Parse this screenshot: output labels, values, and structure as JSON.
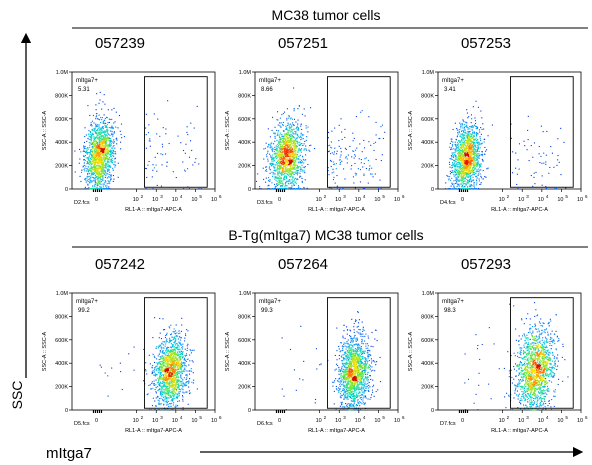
{
  "figure": {
    "ylabel": "SSC",
    "xlabel": "mItga7"
  },
  "groups": [
    {
      "title": "MC38 tumor cells"
    },
    {
      "title": "B-Tg(mItga7) MC38 tumor cells"
    }
  ],
  "chart_data": [
    {
      "type": "scatter",
      "sample_id": "057239",
      "file": "D2.fcs",
      "gate_label": "mItga7+",
      "gate_percent": "5.31",
      "xlabel": "RL1-A :: mItga7-APC-A",
      "ylabel": "SSC-A :: SSC-A",
      "x_scale": "log",
      "xlim": [
        0.05,
        1000000
      ],
      "ylim": [
        0,
        1000000
      ],
      "x_ticks": [
        "0",
        "10",
        "10",
        "10",
        "10",
        "10"
      ],
      "x_tick_exp": [
        "",
        "2",
        "3",
        "4",
        "5",
        "6"
      ],
      "y_ticks": [
        "0",
        "200K",
        "400K",
        "600K",
        "800K",
        "1.0M"
      ],
      "gate_x": [
        250,
        1000000
      ],
      "population": {
        "x_center_log": 0.1,
        "x_spread_log": 0.38,
        "y_center": 290000,
        "y_spread": 150000,
        "tail_fraction": 0.06,
        "tail_x_range": [
          250,
          200000
        ]
      }
    },
    {
      "type": "scatter",
      "sample_id": "057251",
      "file": "D3.fcs",
      "gate_label": "mItga7+",
      "gate_percent": "8.66",
      "xlabel": "RL1-A :: mItga7-APC-A",
      "ylabel": "SSC-A :: SSC-A",
      "x_scale": "log",
      "xlim": [
        0.05,
        1000000
      ],
      "ylim": [
        0,
        1000000
      ],
      "x_ticks": [
        "0",
        "10",
        "10",
        "10",
        "10",
        "10"
      ],
      "x_tick_exp": [
        "",
        "2",
        "3",
        "4",
        "5",
        "6"
      ],
      "y_ticks": [
        "0",
        "200K",
        "400K",
        "600K",
        "800K",
        "1.0M"
      ],
      "gate_x": [
        250,
        1000000
      ],
      "population": {
        "x_center_log": 0.3,
        "x_spread_log": 0.45,
        "y_center": 280000,
        "y_spread": 140000,
        "tail_fraction": 0.09,
        "tail_x_range": [
          250,
          200000
        ]
      }
    },
    {
      "type": "scatter",
      "sample_id": "057253",
      "file": "D4.fcs",
      "gate_label": "mItga7+",
      "gate_percent": "3.41",
      "xlabel": "RL1-A :: mItga7-APC-A",
      "ylabel": "SSC-A :: SSC-A",
      "x_scale": "log",
      "xlim": [
        0.05,
        1000000
      ],
      "ylim": [
        0,
        1000000
      ],
      "x_ticks": [
        "0",
        "10",
        "10",
        "10",
        "10",
        "10"
      ],
      "x_tick_exp": [
        "",
        "2",
        "3",
        "4",
        "5",
        "6"
      ],
      "y_ticks": [
        "0",
        "200K",
        "400K",
        "600K",
        "800K",
        "1.0M"
      ],
      "gate_x": [
        250,
        1000000
      ],
      "population": {
        "x_center_log": 0.15,
        "x_spread_log": 0.38,
        "y_center": 270000,
        "y_spread": 140000,
        "tail_fraction": 0.04,
        "tail_x_range": [
          250,
          200000
        ]
      }
    },
    {
      "type": "scatter",
      "sample_id": "057242",
      "file": "D5.fcs",
      "gate_label": "mItga7+",
      "gate_percent": "99.2",
      "xlabel": "RL1-A :: mItga7-APC-A",
      "ylabel": "SSC-A :: SSC-A",
      "x_scale": "log",
      "xlim": [
        0.05,
        1000000
      ],
      "ylim": [
        0,
        1000000
      ],
      "x_ticks": [
        "0",
        "10",
        "10",
        "10",
        "10",
        "10"
      ],
      "x_tick_exp": [
        "",
        "2",
        "3",
        "4",
        "5",
        "6"
      ],
      "y_ticks": [
        "0",
        "200K",
        "400K",
        "600K",
        "800K",
        "1.0M"
      ],
      "gate_x": [
        250,
        1000000
      ],
      "population": {
        "x_center_log": 3.7,
        "x_spread_log": 0.42,
        "y_center": 330000,
        "y_spread": 150000,
        "tail_fraction": 0.01,
        "tail_x_range": [
          1,
          250
        ]
      }
    },
    {
      "type": "scatter",
      "sample_id": "057264",
      "file": "D6.fcs",
      "gate_label": "mItga7+",
      "gate_percent": "99.3",
      "xlabel": "RL1-A :: mItga7-APC-A",
      "ylabel": "SSC-A :: SSC-A",
      "x_scale": "log",
      "xlim": [
        0.05,
        1000000
      ],
      "ylim": [
        0,
        1000000
      ],
      "x_ticks": [
        "0",
        "10",
        "10",
        "10",
        "10",
        "10"
      ],
      "x_tick_exp": [
        "",
        "2",
        "3",
        "4",
        "5",
        "6"
      ],
      "y_ticks": [
        "0",
        "200K",
        "400K",
        "600K",
        "800K",
        "1.0M"
      ],
      "gate_x": [
        250,
        1000000
      ],
      "population": {
        "x_center_log": 3.75,
        "x_spread_log": 0.4,
        "y_center": 330000,
        "y_spread": 155000,
        "tail_fraction": 0.01,
        "tail_x_range": [
          1,
          250
        ]
      }
    },
    {
      "type": "scatter",
      "sample_id": "057293",
      "file": "D7.fcs",
      "gate_label": "mItga7+",
      "gate_percent": "98.3",
      "xlabel": "RL1-A :: mItga7-APC-A",
      "ylabel": "SSC-A :: SSC-A",
      "x_scale": "log",
      "xlim": [
        0.05,
        1000000
      ],
      "ylim": [
        0,
        1000000
      ],
      "x_ticks": [
        "0",
        "10",
        "10",
        "10",
        "10",
        "10"
      ],
      "x_tick_exp": [
        "",
        "2",
        "3",
        "4",
        "5",
        "6"
      ],
      "y_ticks": [
        "0",
        "200K",
        "400K",
        "600K",
        "800K",
        "1.0M"
      ],
      "gate_x": [
        250,
        1000000
      ],
      "population": {
        "x_center_log": 3.65,
        "x_spread_log": 0.5,
        "y_center": 350000,
        "y_spread": 170000,
        "tail_fraction": 0.02,
        "tail_x_range": [
          1,
          250
        ]
      }
    }
  ]
}
